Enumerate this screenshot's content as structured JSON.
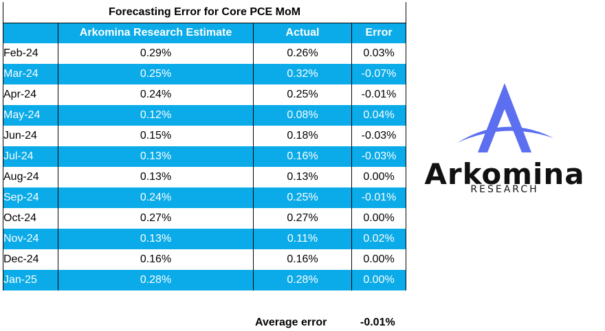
{
  "table": {
    "title": "Forecasting Error for Core PCE MoM",
    "headers": {
      "month": "",
      "estimate": "Arkomina Research Estimate",
      "actual": "Actual",
      "error": "Error"
    },
    "rows": [
      {
        "month": "Feb-24",
        "estimate": "0.29%",
        "actual": "0.26%",
        "error": "0.03%"
      },
      {
        "month": "Mar-24",
        "estimate": "0.25%",
        "actual": "0.32%",
        "error": "-0.07%"
      },
      {
        "month": "Apr-24",
        "estimate": "0.24%",
        "actual": "0.25%",
        "error": "-0.01%"
      },
      {
        "month": "May-24",
        "estimate": "0.12%",
        "actual": "0.08%",
        "error": "0.04%"
      },
      {
        "month": "Jun-24",
        "estimate": "0.15%",
        "actual": "0.18%",
        "error": "-0.03%"
      },
      {
        "month": "Jul-24",
        "estimate": "0.13%",
        "actual": "0.16%",
        "error": "-0.03%"
      },
      {
        "month": "Aug-24",
        "estimate": "0.13%",
        "actual": "0.13%",
        "error": "0.00%"
      },
      {
        "month": "Sep-24",
        "estimate": "0.24%",
        "actual": "0.25%",
        "error": "-0.01%"
      },
      {
        "month": "Oct-24",
        "estimate": "0.27%",
        "actual": "0.27%",
        "error": "0.00%"
      },
      {
        "month": "Nov-24",
        "estimate": "0.13%",
        "actual": "0.11%",
        "error": "0.02%"
      },
      {
        "month": "Dec-24",
        "estimate": "0.16%",
        "actual": "0.16%",
        "error": "0.00%"
      },
      {
        "month": "Jan-25",
        "estimate": "0.28%",
        "actual": "0.28%",
        "error": "0.00%"
      }
    ]
  },
  "summary": {
    "label": "Average error",
    "value": "-0.01%"
  },
  "logo": {
    "name": "Arkomina",
    "subtitle": "RESEARCH",
    "icon": "arkomina-a-icon"
  },
  "colors": {
    "stripe": "#0aabe8",
    "logo_blue": "#5b6ff0"
  }
}
